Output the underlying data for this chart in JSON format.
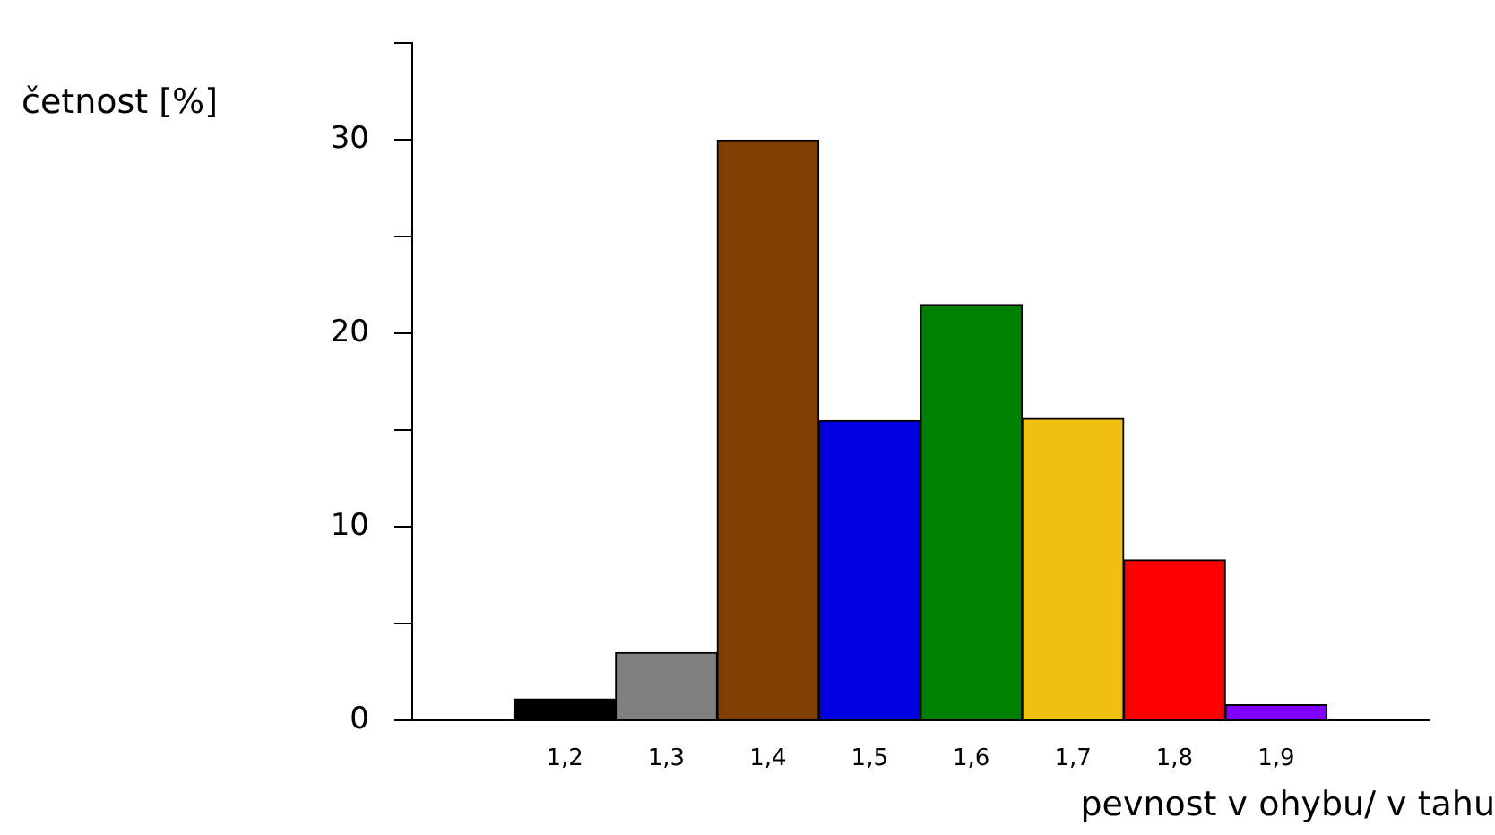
{
  "chart_data": {
    "type": "bar",
    "ylabel": "četnost [%]",
    "xlabel": "pevnost v ohybu/ v tahu",
    "categories": [
      null,
      "1,2",
      "1,3",
      "1,4",
      "1,5",
      "1,6",
      "1,7",
      "1,8",
      "1,9",
      null
    ],
    "values": [
      null,
      1.1,
      3.5,
      30,
      15.5,
      21.5,
      15.6,
      8.3,
      0.8,
      null
    ],
    "colors": [
      "#000000",
      "#000000",
      "#808080",
      "#7f3f00",
      "#0000e0",
      "#008000",
      "#f0c010",
      "#ff0000",
      "#8000ff",
      "#000000"
    ],
    "ylim": [
      0,
      35
    ],
    "yticks": [
      0,
      {
        "value": 5,
        "label": null
      },
      10,
      {
        "value": 15,
        "label": null
      },
      20,
      {
        "value": 25,
        "label": null
      },
      30,
      {
        "value": 35,
        "label": null
      }
    ],
    "grid": false,
    "legend": false
  }
}
